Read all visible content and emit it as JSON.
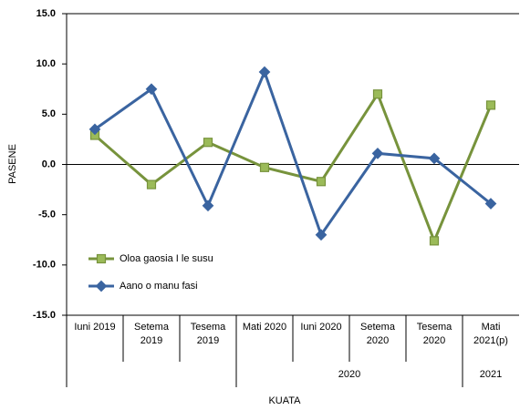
{
  "chart_data": {
    "type": "line",
    "y_label": "PASENE",
    "x_label": "KUATA",
    "categories": [
      "Iuni 2019",
      "Setema 2019",
      "Tesema 2019",
      "Mati 2020",
      "Iuni 2020",
      "Setema 2020",
      "Tesema 2020",
      "Mati 2021(p)"
    ],
    "category_groups": [
      {
        "label": "2020",
        "start": 3,
        "end": 6
      },
      {
        "label": "2021",
        "start": 7,
        "end": 7
      }
    ],
    "series": [
      {
        "name": "Oloa gaosia I le susu",
        "color": "#77933c",
        "marker": "square",
        "values": [
          2.9,
          -2.0,
          2.2,
          -0.3,
          -1.7,
          7.0,
          -7.6,
          5.9
        ]
      },
      {
        "name": "Aano o manu fasi",
        "color": "#3a64a0",
        "marker": "diamond",
        "values": [
          3.5,
          7.5,
          -4.1,
          9.2,
          -7.0,
          1.1,
          0.6,
          -3.9
        ]
      }
    ],
    "ylim": [
      -15,
      15
    ],
    "yticks": [
      {
        "value": 15,
        "label": "15.0"
      },
      {
        "value": 10,
        "label": "10.0"
      },
      {
        "value": 5,
        "label": "5.0"
      },
      {
        "value": 0,
        "label": "0.0"
      },
      {
        "value": -5,
        "label": "-5.0"
      },
      {
        "value": -10,
        "label": "-10.0"
      },
      {
        "value": -15,
        "label": "-15.0"
      }
    ],
    "grid": false,
    "legend": "lower left"
  }
}
